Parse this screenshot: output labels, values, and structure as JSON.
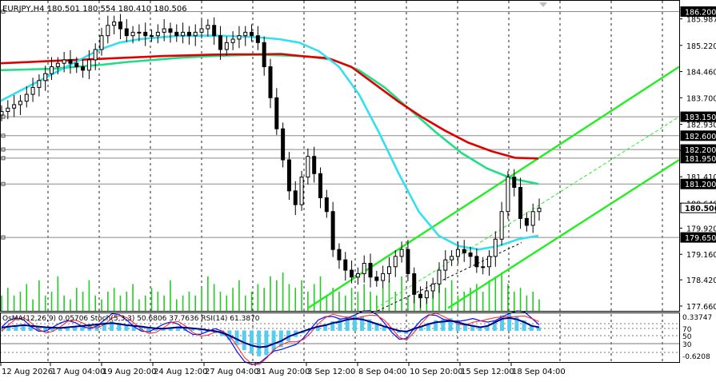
{
  "header": {
    "title": "EURJPY,H4  180.501 180.554 180.410 180.506",
    "dropdown_icon": "triangle-down-icon"
  },
  "osc": {
    "label": "OsMA(12,26,9) 0.05706  Stoch(5,3,3) 50.6806 37.7636  RSI(14) 61.3870"
  },
  "colors": {
    "background": "#ffffff",
    "candle": "#000000",
    "ma_red": "#e00000",
    "ma_green": "#22dd88",
    "ma_cyan": "#33e0ee",
    "channel": "#22ee22",
    "volume": "#22cc22",
    "osma": "#55ccf0",
    "stoch_main": "#1c1ce8",
    "stoch_signal": "#ff2020",
    "rsi": "#000080",
    "label_box": "#000000",
    "label_text": "#ffffff"
  },
  "chart_data": {
    "type": "candlestick",
    "symbol": "EURJPY",
    "timeframe": "H4",
    "price_axis_ticks": [
      "185.987",
      "185.220",
      "184.460",
      "183.700",
      "182.930",
      "182.170",
      "181.410",
      "180.640",
      "179.920",
      "179.160",
      "178.420",
      "177.660"
    ],
    "price_axis_labels": [
      "186.200",
      "183.150",
      "182.600",
      "182.200",
      "181.950",
      "181.200",
      "180.506",
      "179.650"
    ],
    "osc_axis_ticks": [
      "0.33747",
      "70",
      "50",
      "30",
      "-0.6208"
    ],
    "time_axis_labels": [
      "12 Aug 2026",
      "17 Aug 04:00",
      "19 Aug 20:00",
      "24 Aug 12:00",
      "27 Aug 04:00",
      "31 Aug 20:00",
      "3 Sep 12:00",
      "8 Sep 04:00",
      "10 Sep 20:00",
      "15 Sep 12:00",
      "18 Sep 04:00"
    ],
    "horizontal_levels": [
      186.2,
      183.15,
      182.6,
      182.2,
      181.95,
      181.2,
      179.65
    ],
    "current_price": 180.506,
    "close_series": [
      183.3,
      183.4,
      183.5,
      183.6,
      183.8,
      184.0,
      184.2,
      184.4,
      184.6,
      184.7,
      184.8,
      184.7,
      184.6,
      184.5,
      184.8,
      185.1,
      185.5,
      185.8,
      185.9,
      185.7,
      185.5,
      185.6,
      185.6,
      185.5,
      185.5,
      185.6,
      185.7,
      185.6,
      185.5,
      185.6,
      185.5,
      185.6,
      185.7,
      185.8,
      185.5,
      185.1,
      185.3,
      185.4,
      185.5,
      185.6,
      185.5,
      185.3,
      184.6,
      183.7,
      182.8,
      181.9,
      181.0,
      180.6,
      181.4,
      182.0,
      181.5,
      180.8,
      180.4,
      179.3,
      179.0,
      178.7,
      178.5,
      178.6,
      178.9,
      178.5,
      178.4,
      178.6,
      178.8,
      179.1,
      179.3,
      178.6,
      178.0,
      177.9,
      178.1,
      178.3,
      178.7,
      179.0,
      179.1,
      179.3,
      179.2,
      179.1,
      178.8,
      178.8,
      179.1,
      179.6,
      180.4,
      181.4,
      181.1,
      180.2,
      180.0,
      180.4,
      180.5
    ],
    "ma_red": [
      184.7,
      184.73,
      184.76,
      184.79,
      184.82,
      184.85,
      184.88,
      184.91,
      184.93,
      184.95,
      184.96,
      184.96,
      184.97,
      184.9,
      184.85,
      184.6,
      184.1,
      183.6,
      183.15,
      182.75,
      182.4,
      182.15,
      181.96,
      181.94
    ],
    "ma_green": [
      184.5,
      184.52,
      184.54,
      184.6,
      184.66,
      184.74,
      184.8,
      184.86,
      184.9,
      184.93,
      184.95,
      184.93,
      184.9,
      184.8,
      184.5,
      184.0,
      183.35,
      182.7,
      182.1,
      181.65,
      181.35,
      181.2
    ],
    "ma_cyan": [
      183.6,
      183.9,
      184.2,
      184.5,
      184.8,
      185.1,
      185.3,
      185.4,
      185.45,
      185.5,
      185.5,
      185.5,
      185.48,
      185.45,
      185.4,
      185.3,
      185.05,
      184.6,
      183.8,
      182.7,
      181.5,
      180.4,
      179.7,
      179.4,
      179.3,
      179.4,
      179.6,
      179.7
    ],
    "volume": [
      0.4,
      0.6,
      0.4,
      0.5,
      0.7,
      0.3,
      0.8,
      0.4,
      0.5,
      0.9,
      0.4,
      0.3,
      0.6,
      0.5,
      0.8,
      0.4,
      0.3,
      0.5,
      0.6,
      0.4,
      0.5,
      0.7,
      0.3,
      0.4,
      0.6,
      0.5,
      0.4,
      0.8,
      0.3,
      0.4,
      0.5,
      0.4,
      0.6,
      0.9,
      0.7,
      0.5,
      0.4,
      0.6,
      0.8,
      0.4,
      0.5,
      0.7,
      0.6,
      0.9,
      0.8,
      1.0,
      0.7,
      0.6,
      0.8,
      0.5,
      0.7,
      0.9,
      0.4,
      0.6,
      0.5,
      0.4,
      0.6,
      0.5,
      0.7,
      0.5,
      0.4,
      0.6,
      0.8,
      0.5,
      0.9,
      0.4,
      0.6,
      0.5,
      0.4,
      0.5,
      0.7,
      0.6,
      0.8,
      0.4,
      0.5,
      0.6,
      0.7,
      0.5,
      0.8,
      0.9,
      1.0,
      0.7,
      0.5,
      0.6,
      0.4,
      0.5,
      0.3
    ],
    "osma": [
      0.05,
      0.08,
      0.1,
      0.12,
      0.1,
      0.08,
      0.06,
      0.05,
      0.04,
      0.06,
      0.08,
      0.1,
      0.12,
      0.14,
      0.16,
      0.18,
      0.15,
      0.12,
      0.1,
      0.08,
      0.05,
      0.03,
      0.02,
      0.04,
      0.06,
      0.05,
      0.03,
      0.01,
      -0.02,
      -0.05,
      -0.1,
      -0.18,
      -0.28,
      -0.38,
      -0.45,
      -0.5,
      -0.48,
      -0.4,
      -0.32,
      -0.2,
      -0.12,
      -0.05,
      0.02,
      0.08,
      0.12,
      0.18,
      0.22,
      0.28,
      0.3,
      0.28,
      0.22,
      0.15,
      0.08,
      0.02,
      -0.04,
      -0.06,
      0.02,
      0.08,
      0.15,
      0.2,
      0.22,
      0.24,
      0.2,
      0.14,
      0.1,
      0.06,
      0.1,
      0.2,
      0.3,
      0.32,
      0.28,
      0.2,
      0.1,
      0.06
    ]
  }
}
